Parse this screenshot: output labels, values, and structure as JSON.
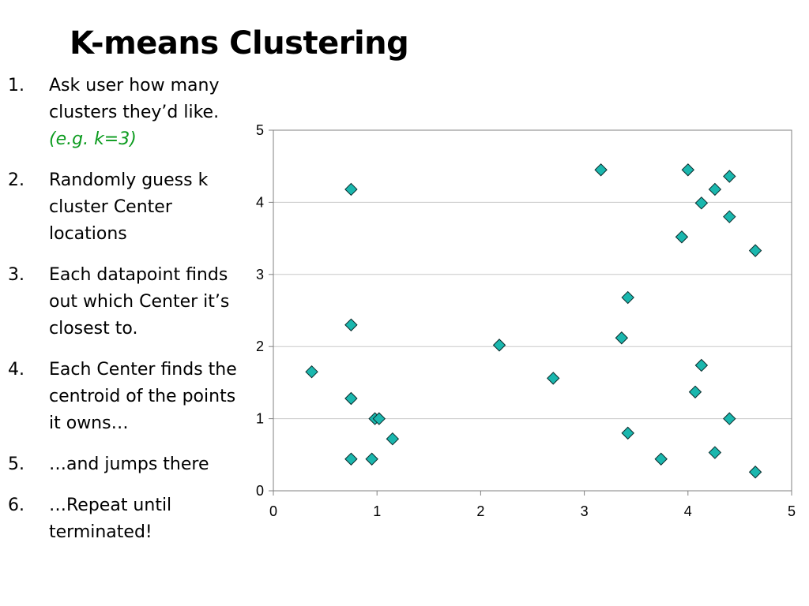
{
  "slide": {
    "title": "K-means Clustering",
    "steps": [
      {
        "num": "1.",
        "text": "Ask user how many clusters they’d like.",
        "note": "(e.g. k=3)"
      },
      {
        "num": "2.",
        "text": "Randomly guess k cluster Center locations"
      },
      {
        "num": "3.",
        "text": "Each datapoint finds out which Center it’s closest to."
      },
      {
        "num": "4.",
        "text": "Each Center finds the centroid of the points it owns…"
      },
      {
        "num": "5.",
        "text": "…and jumps there"
      },
      {
        "num": "6.",
        "text": "…Repeat until terminated!"
      }
    ]
  },
  "colors": {
    "marker_fill": "#1ab7ae",
    "marker_stroke": "#0a2a2a",
    "note_green": "#0b9b1e",
    "grid": "#c8c8c8",
    "axis": "#808080"
  },
  "chart_data": {
    "type": "scatter",
    "title": "",
    "xlabel": "",
    "ylabel": "",
    "xlim": [
      0,
      5
    ],
    "ylim": [
      0,
      5
    ],
    "x_ticks": [
      "0",
      "1",
      "2",
      "3",
      "4",
      "5"
    ],
    "y_ticks": [
      "0",
      "1",
      "2",
      "3",
      "4",
      "5"
    ],
    "grid": "horizontal",
    "legend": "none",
    "marker": "diamond",
    "series": [
      {
        "points": [
          [
            0.75,
            4.18
          ],
          [
            0.37,
            1.65
          ],
          [
            0.75,
            2.3
          ],
          [
            0.75,
            1.28
          ],
          [
            0.98,
            1.0
          ],
          [
            1.02,
            1.0
          ],
          [
            1.15,
            0.72
          ],
          [
            0.75,
            0.44
          ],
          [
            0.95,
            0.44
          ],
          [
            2.18,
            2.02
          ],
          [
            2.7,
            1.56
          ],
          [
            3.16,
            4.45
          ],
          [
            3.42,
            2.68
          ],
          [
            3.36,
            2.12
          ],
          [
            3.42,
            0.8
          ],
          [
            3.74,
            0.44
          ],
          [
            4.0,
            4.45
          ],
          [
            4.4,
            4.36
          ],
          [
            4.26,
            4.18
          ],
          [
            4.13,
            3.99
          ],
          [
            4.4,
            3.8
          ],
          [
            3.94,
            3.52
          ],
          [
            4.65,
            3.33
          ],
          [
            4.13,
            1.74
          ],
          [
            4.07,
            1.37
          ],
          [
            4.4,
            1.0
          ],
          [
            4.26,
            0.53
          ],
          [
            4.65,
            0.26
          ]
        ]
      }
    ]
  }
}
